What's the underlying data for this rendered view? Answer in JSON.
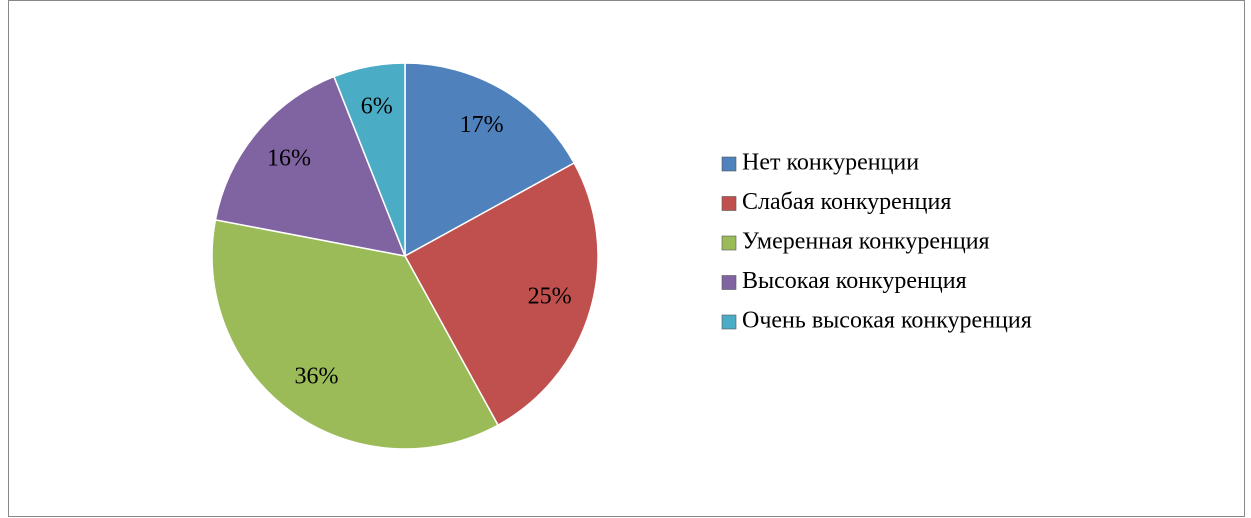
{
  "chart_data": {
    "type": "pie",
    "categories": [
      "Нет конкуренции",
      "Слабая конкуренция",
      "Умеренная конкуренция",
      "Высокая конкуренция",
      "Очень высокая конкуренция"
    ],
    "values": [
      17,
      25,
      36,
      16,
      6
    ],
    "value_labels": [
      "17%",
      "25%",
      "36%",
      "16%",
      "6%"
    ],
    "colors": [
      "#4f81bd",
      "#c0504d",
      "#9bbb59",
      "#8064a2",
      "#4bacc6"
    ],
    "legend": "right"
  }
}
